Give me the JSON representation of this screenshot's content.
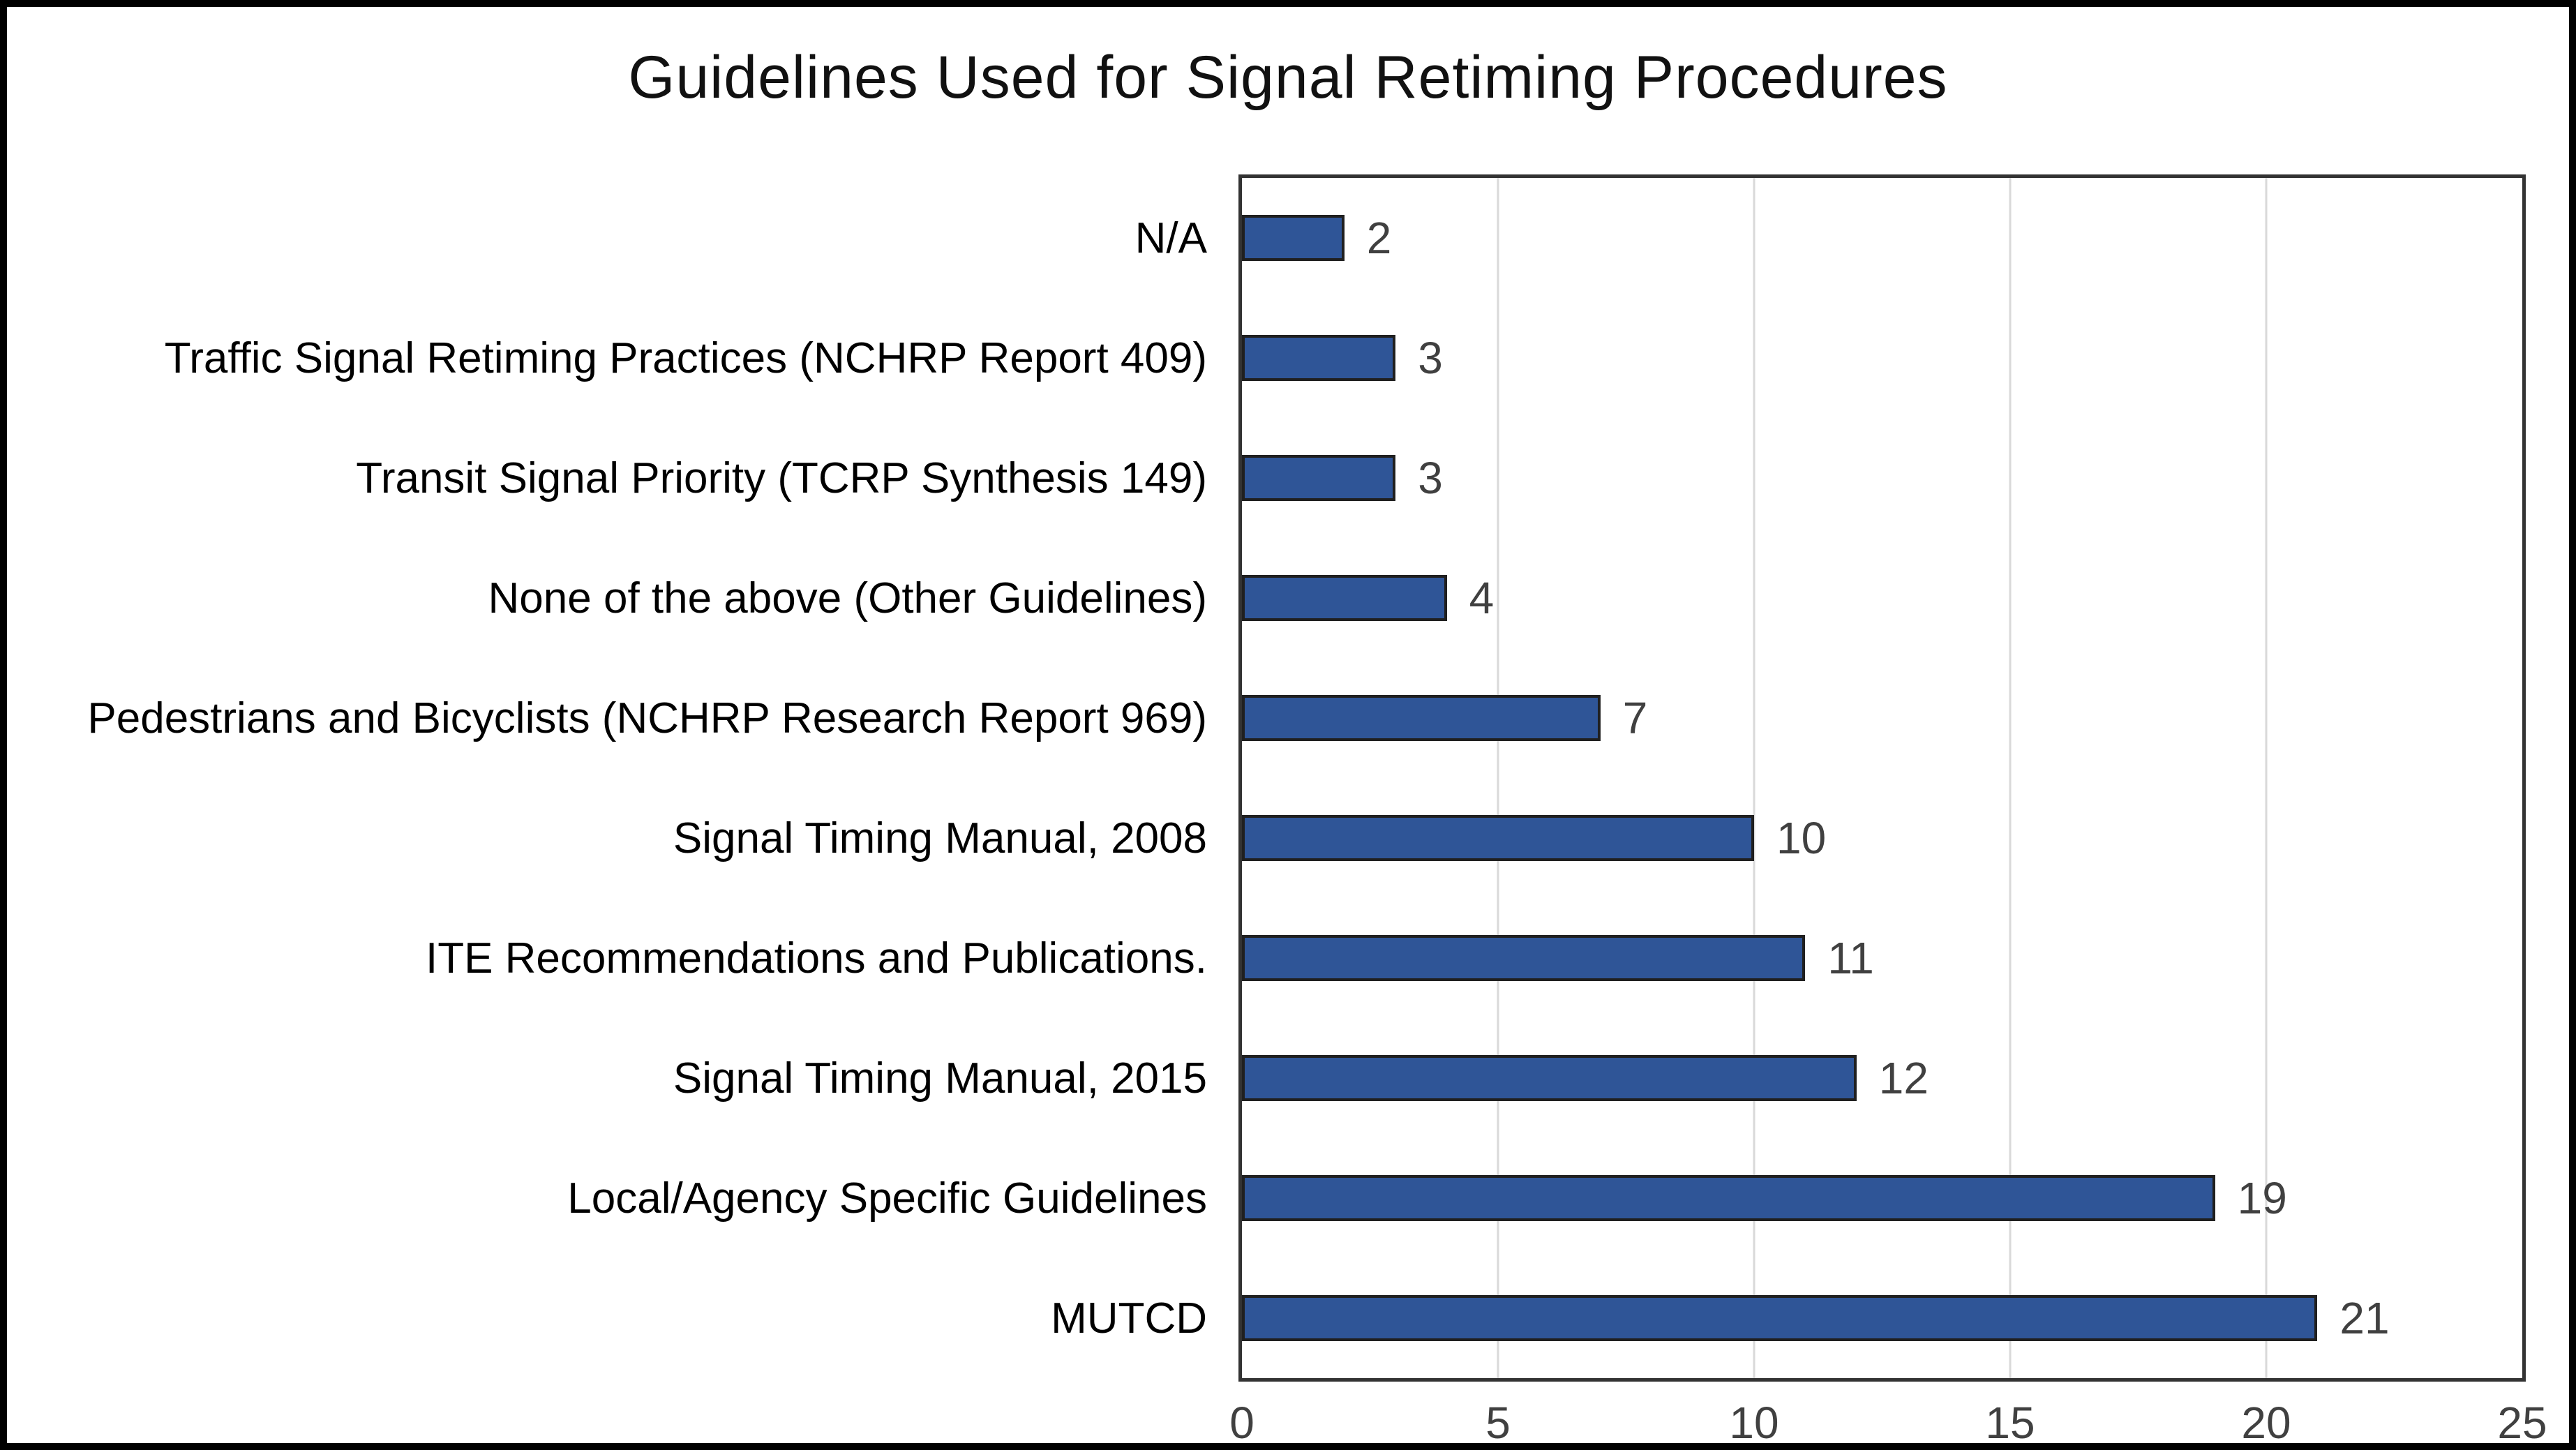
{
  "figure": {
    "background_color": "#ffffff",
    "frame_color": "#000000"
  },
  "chart_data": {
    "type": "bar",
    "orientation": "horizontal",
    "title": "Guidelines Used for Signal Retiming Procedures",
    "categories": [
      "N/A",
      "Traffic Signal Retiming Practices (NCHRP Report 409)",
      "Transit Signal Priority (TCRP Synthesis 149)",
      "None of the above (Other Guidelines)",
      "Pedestrians and Bicyclists (NCHRP Research Report 969)",
      "Signal Timing Manual, 2008",
      "ITE Recommendations and Publications.",
      "Signal Timing Manual, 2015",
      "Local/Agency Specific Guidelines",
      "MUTCD"
    ],
    "values": [
      2,
      3,
      3,
      4,
      7,
      10,
      11,
      12,
      19,
      21
    ],
    "data_labels_shown": true,
    "xlabel": "",
    "ylabel": "",
    "xlim": [
      0,
      25
    ],
    "xticks": [
      0,
      5,
      10,
      15,
      20,
      25
    ],
    "grid": "vertical-only",
    "legend": "none",
    "bar_color": "#2F5597",
    "bar_border_color": "#202020",
    "gridline_color": "#d9d9d9",
    "axis_border_color": "#333333",
    "value_label_color": "#404040",
    "tick_label_color": "#404040"
  }
}
